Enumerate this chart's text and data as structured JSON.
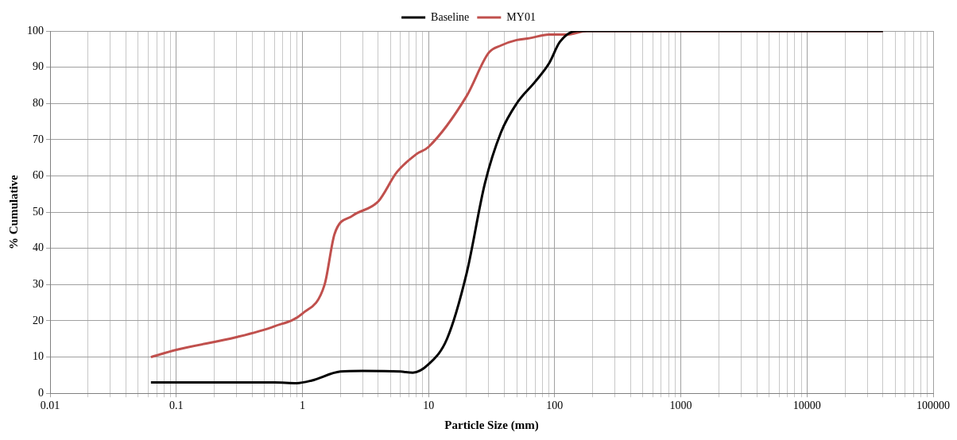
{
  "chart_data": {
    "type": "line",
    "xlabel": "Particle Size (mm)",
    "ylabel": "% Cumulative",
    "log": "x",
    "legend": "top",
    "grid": true,
    "marker": "none",
    "line_style": "solid",
    "xlim": [
      0.01,
      100000
    ],
    "xticks": [
      0.01,
      {
        "value": 0.02,
        "label": null
      },
      {
        "value": 0.03,
        "label": null
      },
      {
        "value": 0.04,
        "label": null
      },
      {
        "value": 0.05,
        "label": null
      },
      {
        "value": 0.06,
        "label": null
      },
      {
        "value": 0.07,
        "label": null
      },
      {
        "value": 0.08,
        "label": null
      },
      {
        "value": 0.09,
        "label": null
      },
      0.1,
      {
        "value": 0.2,
        "label": null
      },
      {
        "value": 0.3,
        "label": null
      },
      {
        "value": 0.4,
        "label": null
      },
      {
        "value": 0.5,
        "label": null
      },
      {
        "value": 0.6,
        "label": null
      },
      {
        "value": 0.7,
        "label": null
      },
      {
        "value": 0.8,
        "label": null
      },
      {
        "value": 0.9,
        "label": null
      },
      1,
      {
        "value": 2,
        "label": null
      },
      {
        "value": 3,
        "label": null
      },
      {
        "value": 4,
        "label": null
      },
      {
        "value": 5,
        "label": null
      },
      {
        "value": 6,
        "label": null
      },
      {
        "value": 7,
        "label": null
      },
      {
        "value": 8,
        "label": null
      },
      {
        "value": 9,
        "label": null
      },
      10,
      {
        "value": 20,
        "label": null
      },
      {
        "value": 30,
        "label": null
      },
      {
        "value": 40,
        "label": null
      },
      {
        "value": 50,
        "label": null
      },
      {
        "value": 60,
        "label": null
      },
      {
        "value": 70,
        "label": null
      },
      {
        "value": 80,
        "label": null
      },
      {
        "value": 90,
        "label": null
      },
      100,
      {
        "value": 200,
        "label": null
      },
      {
        "value": 300,
        "label": null
      },
      {
        "value": 400,
        "label": null
      },
      {
        "value": 500,
        "label": null
      },
      {
        "value": 600,
        "label": null
      },
      {
        "value": 700,
        "label": null
      },
      {
        "value": 800,
        "label": null
      },
      {
        "value": 900,
        "label": null
      },
      1000,
      {
        "value": 2000,
        "label": null
      },
      {
        "value": 3000,
        "label": null
      },
      {
        "value": 4000,
        "label": null
      },
      {
        "value": 5000,
        "label": null
      },
      {
        "value": 6000,
        "label": null
      },
      {
        "value": 7000,
        "label": null
      },
      {
        "value": 8000,
        "label": null
      },
      {
        "value": 9000,
        "label": null
      },
      10000,
      {
        "value": 20000,
        "label": null
      },
      {
        "value": 30000,
        "label": null
      },
      {
        "value": 40000,
        "label": null
      },
      {
        "value": 50000,
        "label": null
      },
      {
        "value": 60000,
        "label": null
      },
      {
        "value": 70000,
        "label": null
      },
      {
        "value": 80000,
        "label": null
      },
      {
        "value": 90000,
        "label": null
      },
      100000
    ],
    "ylim": [
      0,
      100
    ],
    "yticks": [
      0,
      10,
      20,
      30,
      40,
      50,
      60,
      70,
      80,
      90,
      100
    ],
    "series": [
      {
        "name": "Baseline",
        "color": "#000000",
        "x": [
          0.063,
          0.6,
          0.9,
          1.18,
          2,
          3,
          6,
          7.5,
          10,
          14,
          20,
          28,
          37.5,
          50,
          70,
          90,
          110,
          150,
          40000
        ],
        "values": [
          3,
          3,
          2.8,
          3.5,
          6,
          6.2,
          6,
          5.7,
          8,
          15,
          33,
          58,
          72,
          80,
          86,
          91,
          97,
          100,
          100
        ]
      },
      {
        "name": "MY01",
        "color": "#c0504d",
        "x": [
          0.063,
          0.1,
          0.3,
          0.6,
          1,
          1.5,
          1.8,
          2.5,
          4,
          5.6,
          8,
          10,
          20,
          30,
          37.5,
          50,
          63,
          90,
          125,
          180,
          40000
        ],
        "values": [
          10,
          12,
          15.5,
          18.5,
          22,
          30,
          44,
          49,
          53,
          61,
          66,
          68,
          82,
          94,
          96,
          97.5,
          98,
          99,
          99,
          100,
          100
        ]
      }
    ]
  }
}
